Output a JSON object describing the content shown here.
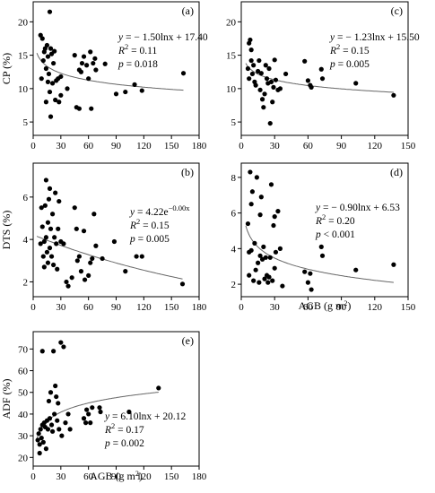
{
  "chart_data": [
    {
      "panel": "(a)",
      "type": "scatter",
      "xlabel": "",
      "ylabel": "CP (%)",
      "xlim": [
        0,
        180
      ],
      "ylim": [
        3,
        23
      ],
      "xticks": [
        "0",
        "30",
        "60",
        "90",
        "120",
        "150",
        "180"
      ],
      "yticks": [
        "5",
        "10",
        "15",
        "20"
      ],
      "ytick_values": [
        5,
        10,
        15,
        20
      ],
      "equation": {
        "prefix": "y",
        "body": " = − 1.50lnx + 17.40",
        "r2": " = 0.11",
        "p_prefix": "p",
        "p_body": " = 0.018"
      },
      "fit": {
        "a": -1.5,
        "b": 17.4,
        "form": "log"
      },
      "points": [
        [
          8,
          18
        ],
        [
          9,
          11.5
        ],
        [
          10,
          17.5
        ],
        [
          11,
          14.2
        ],
        [
          12,
          15.5
        ],
        [
          13,
          16
        ],
        [
          14,
          13
        ],
        [
          14,
          8
        ],
        [
          15,
          16.5
        ],
        [
          16,
          14.8
        ],
        [
          16,
          11
        ],
        [
          17,
          12.2
        ],
        [
          18,
          21.5
        ],
        [
          18,
          9.5
        ],
        [
          19,
          5.8
        ],
        [
          19,
          16
        ],
        [
          20,
          15.2
        ],
        [
          21,
          10.8
        ],
        [
          22,
          13.8
        ],
        [
          23,
          15.6
        ],
        [
          24,
          8.3
        ],
        [
          25,
          11.2
        ],
        [
          27,
          11.5
        ],
        [
          28,
          8
        ],
        [
          30,
          11.8
        ],
        [
          30,
          9
        ],
        [
          37,
          10
        ],
        [
          45,
          15
        ],
        [
          47,
          7.2
        ],
        [
          50,
          7
        ],
        [
          50,
          12.8
        ],
        [
          52,
          12.5
        ],
        [
          53,
          13.8
        ],
        [
          55,
          14.8
        ],
        [
          58,
          13.5
        ],
        [
          60,
          11.5
        ],
        [
          62,
          15.5
        ],
        [
          63,
          7
        ],
        [
          65,
          13.8
        ],
        [
          67,
          14.5
        ],
        [
          68,
          12.8
        ],
        [
          78,
          13.7
        ],
        [
          90,
          9.2
        ],
        [
          100,
          9.5
        ],
        [
          110,
          10.6
        ],
        [
          118,
          9.7
        ],
        [
          163,
          12.3
        ]
      ]
    },
    {
      "panel": "(b)",
      "type": "scatter",
      "xlabel": "",
      "ylabel": "DTS (%)",
      "xlim": [
        0,
        180
      ],
      "ylim": [
        1.3,
        7.6
      ],
      "xticks": [
        "0",
        "30",
        "60",
        "90",
        "120",
        "150",
        "180"
      ],
      "yticks": [
        "2",
        "4",
        "6"
      ],
      "ytick_values": [
        2,
        4,
        6
      ],
      "equation": {
        "prefix": "y",
        "body": " = 4.22e",
        "sup": "−0.00x",
        "r2": " = 0.15",
        "p_prefix": "p",
        "p_body": " = 0.005"
      },
      "fit": {
        "a": 4.22,
        "k": -0.0042,
        "form": "exp"
      },
      "points": [
        [
          8,
          3.8
        ],
        [
          9,
          5.5
        ],
        [
          10,
          4.6
        ],
        [
          11,
          3.2
        ],
        [
          12,
          3.9
        ],
        [
          12,
          2.7
        ],
        [
          13,
          5.6
        ],
        [
          14,
          6.8
        ],
        [
          14,
          4.1
        ],
        [
          15,
          3.4
        ],
        [
          16,
          4.8
        ],
        [
          16,
          2.9
        ],
        [
          17,
          5.9
        ],
        [
          18,
          6.4
        ],
        [
          18,
          3.6
        ],
        [
          19,
          4.5
        ],
        [
          20,
          3.2
        ],
        [
          21,
          5.2
        ],
        [
          22,
          2.8
        ],
        [
          23,
          4.1
        ],
        [
          24,
          6.2
        ],
        [
          25,
          3.8
        ],
        [
          26,
          2.6
        ],
        [
          27,
          4.5
        ],
        [
          28,
          5.8
        ],
        [
          30,
          3.9
        ],
        [
          33,
          3.8
        ],
        [
          36,
          2.0
        ],
        [
          38,
          1.8
        ],
        [
          42,
          2.2
        ],
        [
          45,
          5.5
        ],
        [
          47,
          4.5
        ],
        [
          48,
          3.0
        ],
        [
          50,
          3.2
        ],
        [
          52,
          2.5
        ],
        [
          55,
          4.4
        ],
        [
          56,
          2.1
        ],
        [
          60,
          2.3
        ],
        [
          62,
          2.9
        ],
        [
          64,
          3.1
        ],
        [
          66,
          5.2
        ],
        [
          68,
          3.7
        ],
        [
          75,
          3.1
        ],
        [
          88,
          3.9
        ],
        [
          100,
          2.5
        ],
        [
          112,
          3.2
        ],
        [
          118,
          3.2
        ],
        [
          162,
          1.9
        ]
      ]
    },
    {
      "panel": "(c)",
      "type": "scatter",
      "xlabel": "",
      "ylabel": "",
      "xlim": [
        0,
        150
      ],
      "ylim": [
        3,
        23
      ],
      "xticks": [
        "0",
        "30",
        "60",
        "90",
        "120",
        "150"
      ],
      "yticks": [
        "5",
        "10",
        "15",
        "20"
      ],
      "ytick_values": [
        5,
        10,
        15,
        20
      ],
      "equation": {
        "prefix": "y",
        "body": " = − 1.23lnx + 15.50",
        "r2": " = 0.15",
        "p_prefix": "p",
        "p_body": " = 0.005"
      },
      "fit": {
        "a": -1.23,
        "b": 15.5,
        "form": "log"
      },
      "points": [
        [
          6,
          13
        ],
        [
          7,
          16.8
        ],
        [
          7,
          11.5
        ],
        [
          8,
          17.3
        ],
        [
          9,
          15.8
        ],
        [
          9,
          14.2
        ],
        [
          10,
          12.2
        ],
        [
          11,
          13.5
        ],
        [
          12,
          11
        ],
        [
          13,
          10.5
        ],
        [
          15,
          12.6
        ],
        [
          16,
          14.2
        ],
        [
          17,
          9.8
        ],
        [
          18,
          12.3
        ],
        [
          19,
          8.4
        ],
        [
          20,
          7.2
        ],
        [
          21,
          9.2
        ],
        [
          22,
          13.5
        ],
        [
          23,
          11.5
        ],
        [
          24,
          10.8
        ],
        [
          25,
          13
        ],
        [
          26,
          4.8
        ],
        [
          27,
          11
        ],
        [
          28,
          8
        ],
        [
          29,
          10.2
        ],
        [
          30,
          14.3
        ],
        [
          31,
          11.3
        ],
        [
          33,
          9.8
        ],
        [
          35,
          10
        ],
        [
          40,
          12.2
        ],
        [
          57,
          14.1
        ],
        [
          60,
          11.2
        ],
        [
          62,
          10.5
        ],
        [
          63,
          10.2
        ],
        [
          72,
          12.9
        ],
        [
          73,
          11.5
        ],
        [
          103,
          10.8
        ],
        [
          137,
          9
        ]
      ]
    },
    {
      "panel": "(d)",
      "type": "scatter",
      "xlabel": "AGB (g m²)",
      "ylabel": "",
      "xlim": [
        0,
        150
      ],
      "ylim": [
        1.3,
        8.8
      ],
      "xticks": [
        "0",
        "30",
        "60",
        "90",
        "120",
        "150"
      ],
      "yticks": [
        "2",
        "4",
        "6",
        "8"
      ],
      "ytick_values": [
        2,
        4,
        6,
        8
      ],
      "equation": {
        "prefix": "y",
        "body": " = − 0.90lnx + 6.53",
        "r2": " = 0.20",
        "p_prefix": "p",
        "p_body": " < 0.001"
      },
      "fit": {
        "a": -0.9,
        "b": 6.53,
        "form": "log"
      },
      "points": [
        [
          6,
          5.4
        ],
        [
          7,
          3.8
        ],
        [
          7,
          2.5
        ],
        [
          8,
          8.3
        ],
        [
          9,
          6.5
        ],
        [
          9,
          3.9
        ],
        [
          10,
          7.2
        ],
        [
          11,
          2.2
        ],
        [
          12,
          4.3
        ],
        [
          13,
          2.8
        ],
        [
          14,
          8
        ],
        [
          15,
          3.2
        ],
        [
          16,
          2.1
        ],
        [
          17,
          5.9
        ],
        [
          17,
          3.6
        ],
        [
          18,
          6.9
        ],
        [
          19,
          3.4
        ],
        [
          20,
          4.1
        ],
        [
          21,
          2.3
        ],
        [
          22,
          3.5
        ],
        [
          23,
          2.5
        ],
        [
          24,
          2.1
        ],
        [
          25,
          2.4
        ],
        [
          26,
          3.5
        ],
        [
          27,
          7.6
        ],
        [
          28,
          2.2
        ],
        [
          29,
          5.3
        ],
        [
          30,
          5.8
        ],
        [
          30,
          2.9
        ],
        [
          31,
          3.8
        ],
        [
          33,
          6.1
        ],
        [
          35,
          4
        ],
        [
          37,
          1.9
        ],
        [
          57,
          2.7
        ],
        [
          60,
          2.1
        ],
        [
          62,
          2.6
        ],
        [
          63,
          1.7
        ],
        [
          72,
          4.1
        ],
        [
          73,
          3.6
        ],
        [
          103,
          2.8
        ],
        [
          137,
          3.1
        ]
      ]
    },
    {
      "panel": "(e)",
      "type": "scatter",
      "xlabel": "AGB (g m²)",
      "ylabel": "ADF (%)",
      "xlim": [
        0,
        180
      ],
      "ylim": [
        16,
        78
      ],
      "xticks": [
        "0",
        "30",
        "60",
        "90",
        "120",
        "150",
        "180"
      ],
      "yticks": [
        "20",
        "30",
        "40",
        "50",
        "60",
        "70"
      ],
      "ytick_values": [
        20,
        30,
        40,
        50,
        60,
        70
      ],
      "equation": {
        "prefix": "y",
        "body": " = 6.10lnx + 20.12",
        "r2": " = 0.17",
        "p_prefix": "p",
        "p_body": " = 0.002"
      },
      "fit": {
        "a": 6.1,
        "b": 20.12,
        "form": "log"
      },
      "points": [
        [
          5,
          28
        ],
        [
          6,
          31
        ],
        [
          7,
          26
        ],
        [
          7,
          22
        ],
        [
          8,
          33
        ],
        [
          9,
          29
        ],
        [
          10,
          35
        ],
        [
          10,
          69
        ],
        [
          11,
          27
        ],
        [
          12,
          36
        ],
        [
          13,
          34
        ],
        [
          14,
          24
        ],
        [
          15,
          37
        ],
        [
          16,
          33
        ],
        [
          17,
          46
        ],
        [
          18,
          38
        ],
        [
          19,
          50
        ],
        [
          20,
          35
        ],
        [
          21,
          32
        ],
        [
          22,
          69
        ],
        [
          23,
          40
        ],
        [
          24,
          53
        ],
        [
          25,
          48
        ],
        [
          26,
          37
        ],
        [
          27,
          45
        ],
        [
          28,
          33
        ],
        [
          30,
          73
        ],
        [
          31,
          30
        ],
        [
          33,
          71
        ],
        [
          35,
          36
        ],
        [
          38,
          40
        ],
        [
          40,
          33
        ],
        [
          55,
          38
        ],
        [
          57,
          36
        ],
        [
          58,
          42
        ],
        [
          60,
          40
        ],
        [
          62,
          36
        ],
        [
          64,
          43
        ],
        [
          72,
          43
        ],
        [
          73,
          41
        ],
        [
          104,
          41
        ],
        [
          136,
          52
        ]
      ]
    }
  ]
}
